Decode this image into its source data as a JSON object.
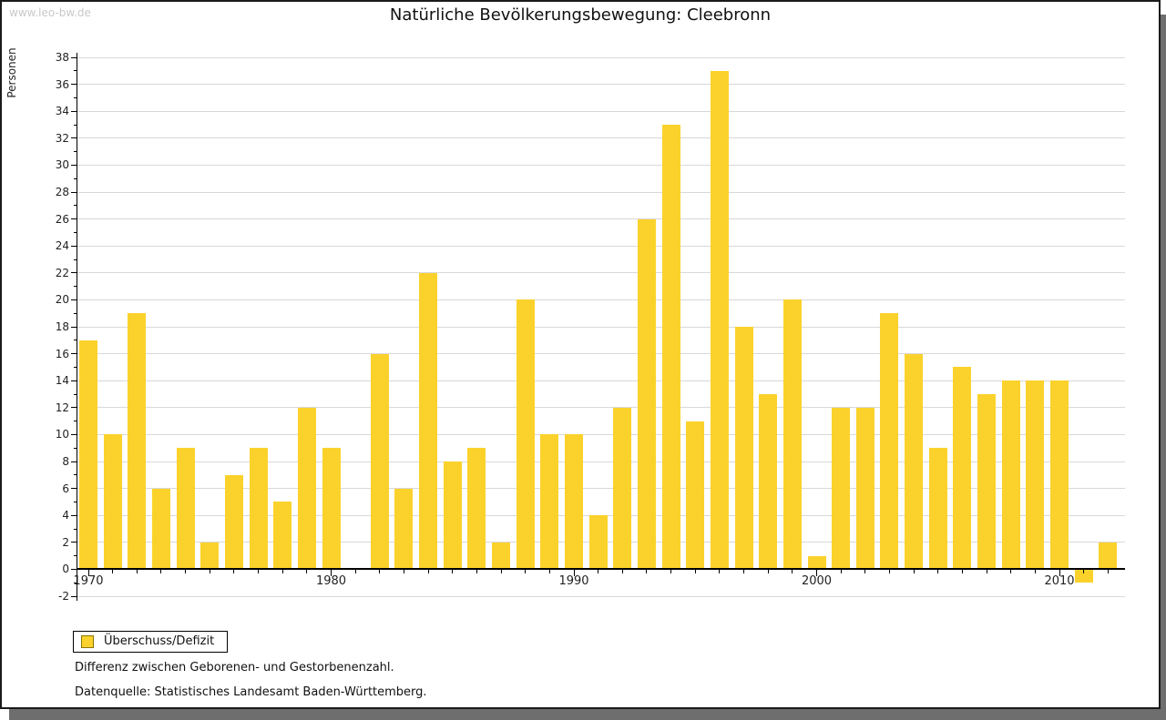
{
  "watermark": "www.leo-bw.de",
  "header": {
    "title": "Natürliche Bevölkerungsbewegung: Cleebronn"
  },
  "chart_data": {
    "type": "bar",
    "title": "Natürliche Bevölkerungsbewegung: Cleebronn",
    "xlabel": "",
    "ylabel": "Personen",
    "ylim": [
      -2,
      38
    ],
    "ytick_major_step": 2,
    "ytick_minor_step": 1,
    "grid": true,
    "legend_position": "bottom-left",
    "x_major_ticks": [
      1970,
      1980,
      1990,
      2000,
      2010
    ],
    "series": [
      {
        "name": "Überschuss/Defizit",
        "years": [
          1970,
          1971,
          1972,
          1973,
          1974,
          1975,
          1976,
          1977,
          1978,
          1979,
          1980,
          1981,
          1982,
          1983,
          1984,
          1985,
          1986,
          1987,
          1988,
          1989,
          1990,
          1991,
          1992,
          1993,
          1994,
          1995,
          1996,
          1997,
          1998,
          1999,
          2000,
          2001,
          2002,
          2003,
          2004,
          2005,
          2006,
          2007,
          2008,
          2009,
          2010,
          2011,
          2012
        ],
        "values": [
          17,
          10,
          19,
          6,
          9,
          2,
          7,
          9,
          5,
          12,
          9,
          null,
          16,
          6,
          22,
          8,
          9,
          2,
          20,
          10,
          10,
          4,
          12,
          26,
          33,
          11,
          37,
          18,
          13,
          20,
          1,
          12,
          12,
          19,
          16,
          9,
          15,
          13,
          14,
          14,
          14,
          -1,
          2
        ]
      }
    ]
  },
  "legend": {
    "label": "Überschuss/Defizit"
  },
  "footnotes": {
    "line1": "Differenz zwischen Geborenen- und Gestorbenenzahl.",
    "line2": "Datenquelle: Statistisches Landesamt Baden-Württemberg."
  },
  "colors": {
    "bar": "#FBD22C",
    "swatch_border": "#8B7500",
    "grid": "#D8D8D8",
    "axis": "#000000",
    "watermark": "#C9C9C9",
    "window_shadow": "#6E6E6E"
  }
}
